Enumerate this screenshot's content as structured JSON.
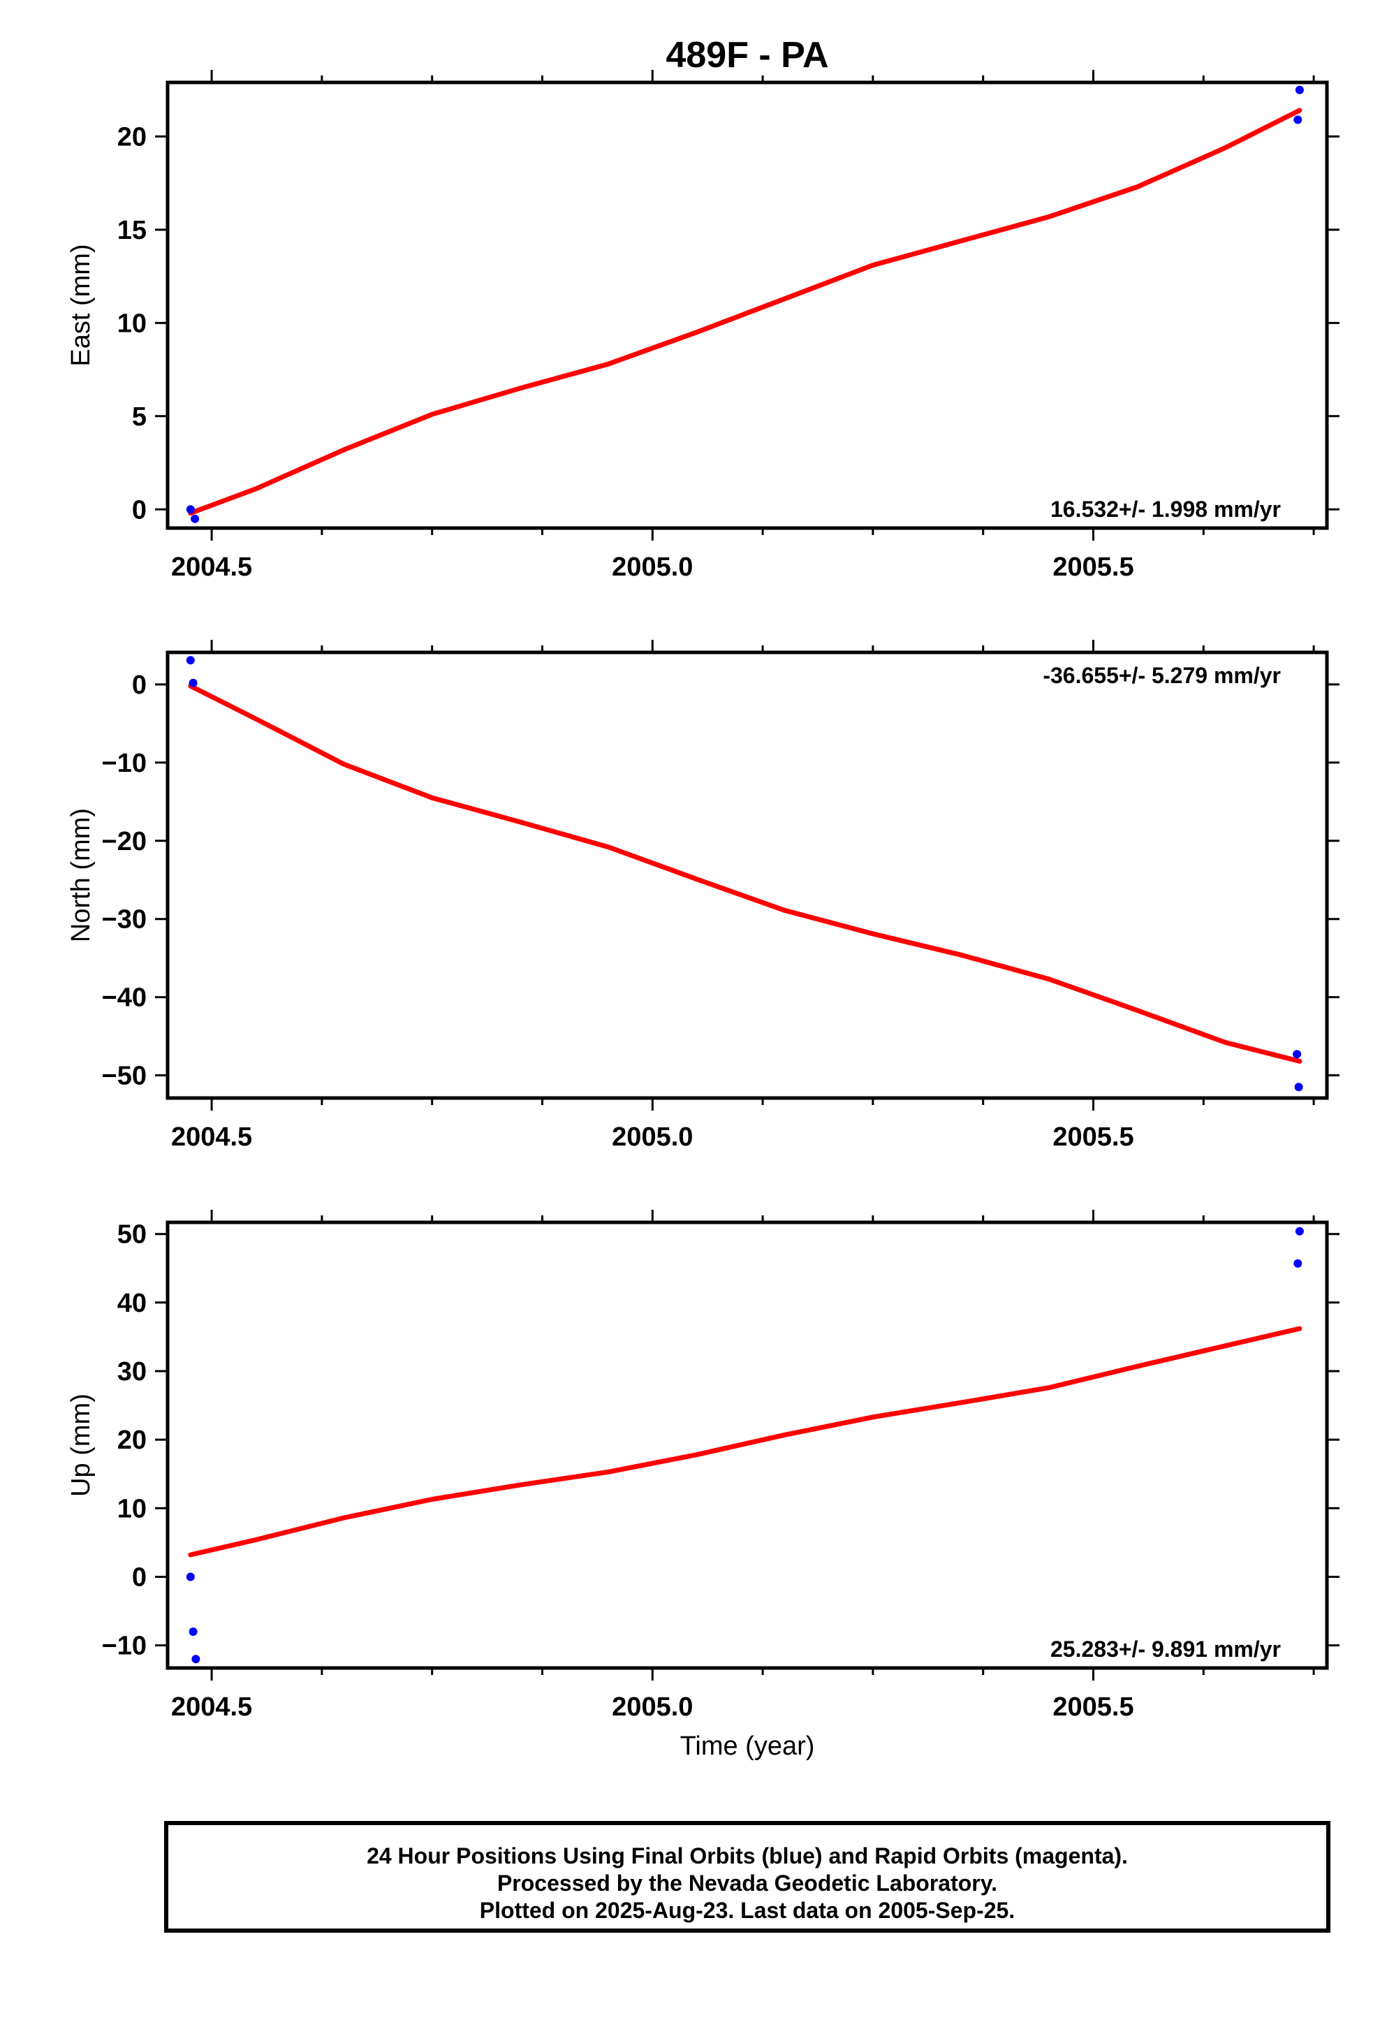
{
  "title": "489F - PA",
  "xlabel": "Time (year)",
  "footer": {
    "line1": "24 Hour Positions Using Final Orbits (blue) and Rapid Orbits (magenta).",
    "line2": "Processed by the Nevada Geodetic Laboratory.",
    "line3": "Plotted on 2025-Aug-23. Last data on 2005-Sep-25."
  },
  "colors": {
    "points": "#0000ff",
    "fit": "#ff0000",
    "frame": "#000000"
  },
  "chart_data": [
    {
      "type": "scatter",
      "ylabel": "East (mm)",
      "rate_label": "16.532+/- 1.998 mm/yr",
      "rate_position": "bottom-right",
      "xlim": [
        2004.45,
        2005.765
      ],
      "ylim": [
        -1.0,
        22.9
      ],
      "x_ticks": [
        2004.5,
        2005.0,
        2005.5
      ],
      "x_tick_labels": [
        "2004.5",
        "2005.0",
        "2005.5"
      ],
      "y_ticks": [
        0,
        5,
        10,
        15,
        20
      ],
      "y_tick_labels": [
        "0",
        "5",
        "10",
        "15",
        "20"
      ],
      "points": {
        "x": [
          2004.476,
          2004.481,
          2005.732,
          2005.734
        ],
        "y": [
          0.0,
          -0.5,
          20.9,
          22.5
        ]
      },
      "fit": {
        "x": [
          2004.476,
          2004.55,
          2004.65,
          2004.75,
          2004.85,
          2004.95,
          2005.05,
          2005.15,
          2005.25,
          2005.35,
          2005.45,
          2005.55,
          2005.65,
          2005.734
        ],
        "y": [
          -0.2,
          1.1,
          3.2,
          5.1,
          6.5,
          7.8,
          9.5,
          11.3,
          13.1,
          14.4,
          15.7,
          17.3,
          19.4,
          21.4
        ]
      }
    },
    {
      "type": "scatter",
      "ylabel": "North (mm)",
      "rate_label": "-36.655+/- 5.279 mm/yr",
      "rate_position": "top-right",
      "xlim": [
        2004.45,
        2005.765
      ],
      "ylim": [
        -52.9,
        4.1
      ],
      "x_ticks": [
        2004.5,
        2005.0,
        2005.5
      ],
      "x_tick_labels": [
        "2004.5",
        "2005.0",
        "2005.5"
      ],
      "y_ticks": [
        0,
        -10,
        -20,
        -30,
        -40,
        -50
      ],
      "y_tick_labels": [
        "0",
        "−10",
        "−20",
        "−30",
        "−40",
        "−50"
      ],
      "points": {
        "x": [
          2004.476,
          2004.479,
          2005.731,
          2005.733
        ],
        "y": [
          3.1,
          0.2,
          -47.3,
          -51.5
        ]
      },
      "fit": {
        "x": [
          2004.476,
          2004.55,
          2004.65,
          2004.75,
          2004.85,
          2004.95,
          2005.05,
          2005.15,
          2005.25,
          2005.35,
          2005.45,
          2005.55,
          2005.65,
          2005.734
        ],
        "y": [
          -0.2,
          -4.4,
          -10.2,
          -14.5,
          -17.6,
          -20.8,
          -24.9,
          -28.9,
          -31.9,
          -34.6,
          -37.7,
          -41.7,
          -45.8,
          -48.2
        ]
      }
    },
    {
      "type": "scatter",
      "ylabel": "Up (mm)",
      "rate_label": "25.283+/- 9.891 mm/yr",
      "rate_position": "bottom-right",
      "xlim": [
        2004.45,
        2005.765
      ],
      "ylim": [
        -13.3,
        51.7
      ],
      "x_ticks": [
        2004.5,
        2005.0,
        2005.5
      ],
      "x_tick_labels": [
        "2004.5",
        "2005.0",
        "2005.5"
      ],
      "y_ticks": [
        50,
        40,
        30,
        20,
        10,
        0,
        -10
      ],
      "y_tick_labels": [
        "50",
        "40",
        "30",
        "20",
        "10",
        "0",
        "−10"
      ],
      "points": {
        "x": [
          2004.476,
          2004.479,
          2004.482,
          2005.732,
          2005.734
        ],
        "y": [
          0.0,
          -8.0,
          -12.0,
          45.7,
          50.4
        ]
      },
      "fit": {
        "x": [
          2004.476,
          2004.55,
          2004.65,
          2004.75,
          2004.85,
          2004.95,
          2005.05,
          2005.15,
          2005.25,
          2005.35,
          2005.45,
          2005.55,
          2005.65,
          2005.734
        ],
        "y": [
          3.2,
          5.4,
          8.6,
          11.3,
          13.4,
          15.3,
          17.8,
          20.7,
          23.3,
          25.4,
          27.6,
          30.7,
          33.7,
          36.2
        ]
      }
    }
  ]
}
